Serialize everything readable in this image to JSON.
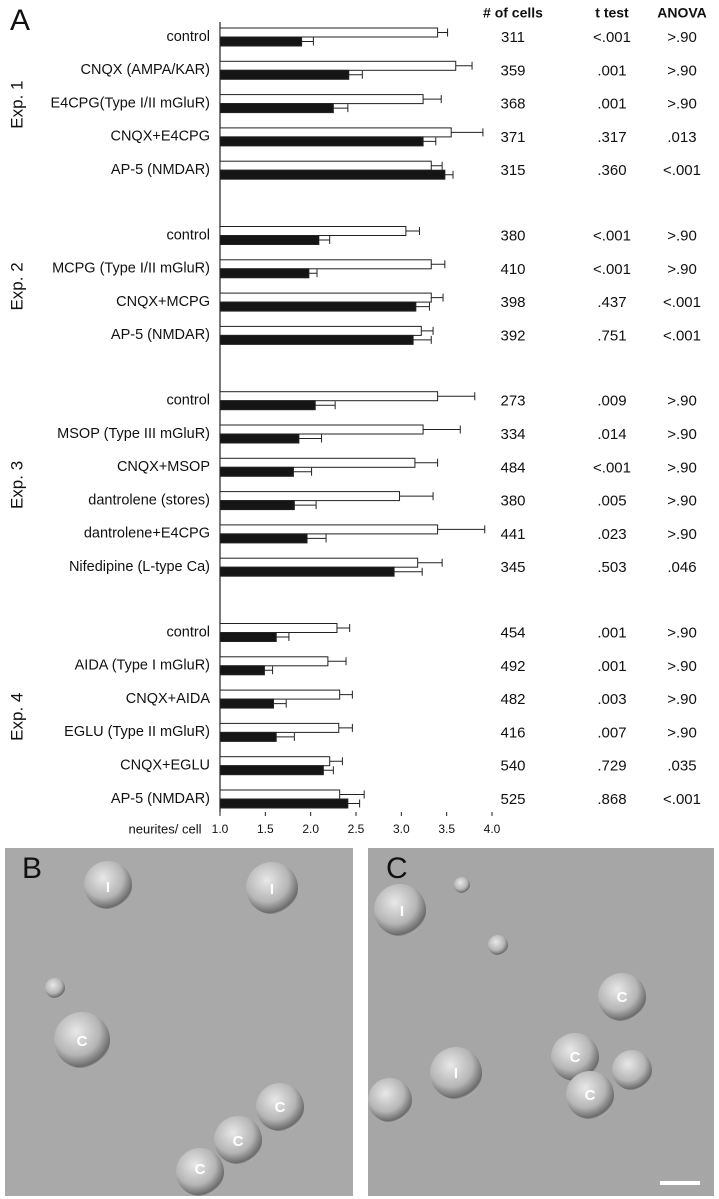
{
  "panel_label": "A",
  "chart_data": {
    "type": "bar",
    "columns": [
      "# of cells",
      "t test",
      "ANOVA"
    ],
    "x_label": "neurites/ cell",
    "xlim": [
      1,
      4
    ],
    "xticks": [
      {
        "value": 1,
        "label": "1.0"
      },
      1.5,
      {
        "value": 2,
        "label": "2.0"
      },
      2.5,
      {
        "value": 3,
        "label": "3.0"
      },
      3.5,
      {
        "value": 4,
        "label": "4.0"
      }
    ],
    "groups": [
      {
        "label": "Exp. 1",
        "categories": [
          "control",
          "CNQX (AMPA/KAR)",
          "E4CPG(Type I/II mGluR)",
          "CNQX+E4CPG",
          "AP-5 (NMDAR)"
        ],
        "series": [
          {
            "color": "#ffffff",
            "values": [
              3.4,
              3.6,
              3.24,
              3.55,
              3.33
            ],
            "errors": [
              0.11,
              0.18,
              0.2,
              0.35,
              0.12
            ]
          },
          {
            "color": "#151515",
            "values": [
              1.9,
              2.42,
              2.25,
              3.24,
              3.48
            ],
            "errors": [
              0.13,
              0.15,
              0.16,
              0.14,
              0.09
            ]
          }
        ],
        "cells": [
          311,
          359,
          368,
          371,
          315
        ],
        "t_test": [
          "<.001",
          ".001",
          ".001",
          ".317",
          ".360"
        ],
        "anova": [
          ">.90",
          ">.90",
          ">.90",
          ".013",
          "<.001"
        ]
      },
      {
        "label": "Exp. 2",
        "categories": [
          "control",
          "MCPG (Type I/II mGluR)",
          "CNQX+MCPG",
          "AP-5 (NMDAR)"
        ],
        "series": [
          {
            "color": "#ffffff",
            "values": [
              3.05,
              3.33,
              3.33,
              3.22
            ],
            "errors": [
              0.15,
              0.15,
              0.13,
              0.13
            ]
          },
          {
            "color": "#151515",
            "values": [
              2.09,
              1.98,
              3.16,
              3.13
            ],
            "errors": [
              0.12,
              0.09,
              0.15,
              0.2
            ]
          }
        ],
        "cells": [
          380,
          410,
          398,
          392
        ],
        "t_test": [
          "<.001",
          "<.001",
          ".437",
          ".751"
        ],
        "anova": [
          ">.90",
          ">.90",
          "<.001",
          "<.001"
        ]
      },
      {
        "label": "Exp. 3",
        "categories": [
          "control",
          "MSOP (Type III mGluR)",
          "CNQX+MSOP",
          "dantrolene (stores)",
          "dantrolene+E4CPG",
          "Nifedipine (L-type Ca)"
        ],
        "series": [
          {
            "color": "#ffffff",
            "values": [
              3.4,
              3.24,
              3.15,
              2.98,
              3.4,
              3.18
            ],
            "errors": [
              0.41,
              0.41,
              0.25,
              0.37,
              0.52,
              0.27
            ]
          },
          {
            "color": "#151515",
            "values": [
              2.05,
              1.87,
              1.81,
              1.82,
              1.96,
              2.92
            ],
            "errors": [
              0.22,
              0.25,
              0.2,
              0.24,
              0.21,
              0.31
            ]
          }
        ],
        "cells": [
          273,
          334,
          484,
          380,
          441,
          345
        ],
        "t_test": [
          ".009",
          ".014",
          "<.001",
          ".005",
          ".023",
          ".503"
        ],
        "anova": [
          ">.90",
          ">.90",
          ">.90",
          ">.90",
          ">.90",
          ".046"
        ]
      },
      {
        "label": "Exp. 4",
        "categories": [
          "control",
          "AIDA (Type I mGluR)",
          "CNQX+AIDA",
          "EGLU (Type II mGluR)",
          "CNQX+EGLU",
          "AP-5 (NMDAR)"
        ],
        "series": [
          {
            "color": "#ffffff",
            "values": [
              2.29,
              2.19,
              2.32,
              2.31,
              2.21,
              2.32
            ],
            "errors": [
              0.14,
              0.2,
              0.14,
              0.15,
              0.14,
              0.27
            ]
          },
          {
            "color": "#151515",
            "values": [
              1.62,
              1.49,
              1.59,
              1.62,
              2.14,
              2.41
            ],
            "errors": [
              0.14,
              0.09,
              0.14,
              0.2,
              0.11,
              0.13
            ]
          }
        ],
        "cells": [
          454,
          492,
          482,
          416,
          540,
          525
        ],
        "t_test": [
          ".001",
          ".001",
          ".003",
          ".007",
          ".729",
          ".868"
        ],
        "anova": [
          ">.90",
          ">.90",
          ">.90",
          ">.90",
          ".035",
          "<.001"
        ]
      }
    ]
  },
  "micrographs": [
    {
      "label": "B",
      "cell_labels": [
        "I",
        "I",
        "C",
        "C",
        "C",
        "C"
      ]
    },
    {
      "label": "C",
      "cell_labels": [
        "I",
        "I",
        "C",
        "C",
        "C"
      ]
    }
  ]
}
